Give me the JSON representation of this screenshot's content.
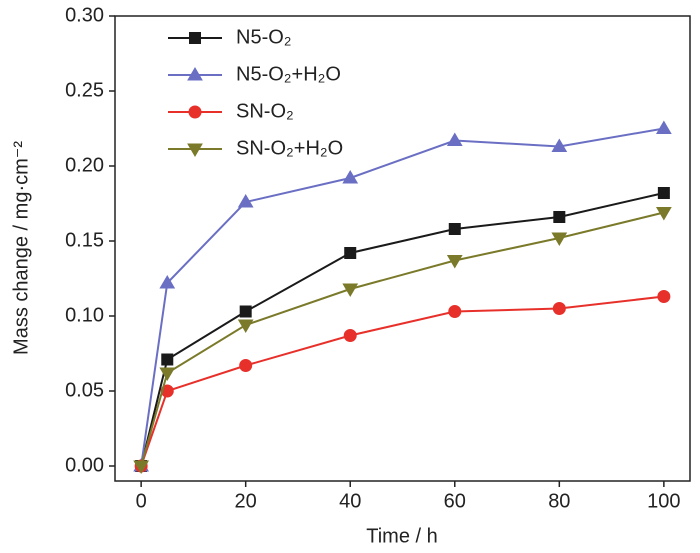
{
  "chart_data": {
    "type": "line",
    "xlabel": "Time / h",
    "ylabel": "Mass change / mg·cm⁻²",
    "x": [
      0,
      5,
      20,
      40,
      60,
      80,
      100
    ],
    "series": [
      {
        "name": "N5-O₂",
        "color": "#1a1a1a",
        "marker": "square",
        "values": [
          0,
          0.071,
          0.103,
          0.142,
          0.158,
          0.166,
          0.182
        ]
      },
      {
        "name": "N5-O₂+H₂O",
        "color": "#6a6fc4",
        "marker": "triangle",
        "values": [
          0,
          0.122,
          0.176,
          0.192,
          0.217,
          0.213,
          0.225
        ]
      },
      {
        "name": "SN-O₂",
        "color": "#e8302b",
        "marker": "circle",
        "values": [
          0,
          0.05,
          0.067,
          0.087,
          0.103,
          0.105,
          0.113
        ]
      },
      {
        "name": "SN-O₂+H₂O",
        "color": "#7a7a2a",
        "marker": "triangle-down",
        "values": [
          0,
          0.062,
          0.094,
          0.118,
          0.137,
          0.152,
          0.169
        ]
      }
    ],
    "xlim": [
      -5,
      105
    ],
    "xticks": [
      0,
      20,
      40,
      60,
      80,
      100
    ],
    "ylim": [
      -0.01,
      0.3
    ],
    "yticks": [
      {
        "value": 0,
        "label": "0.00"
      },
      {
        "value": 0.05,
        "label": "0.05"
      },
      {
        "value": 0.1,
        "label": "0.10"
      },
      {
        "value": 0.15,
        "label": "0.15"
      },
      {
        "value": 0.2,
        "label": "0.20"
      },
      {
        "value": 0.25,
        "label": "0.25"
      },
      {
        "value": 0.3,
        "label": "0.30"
      }
    ],
    "legend": "upper left"
  }
}
